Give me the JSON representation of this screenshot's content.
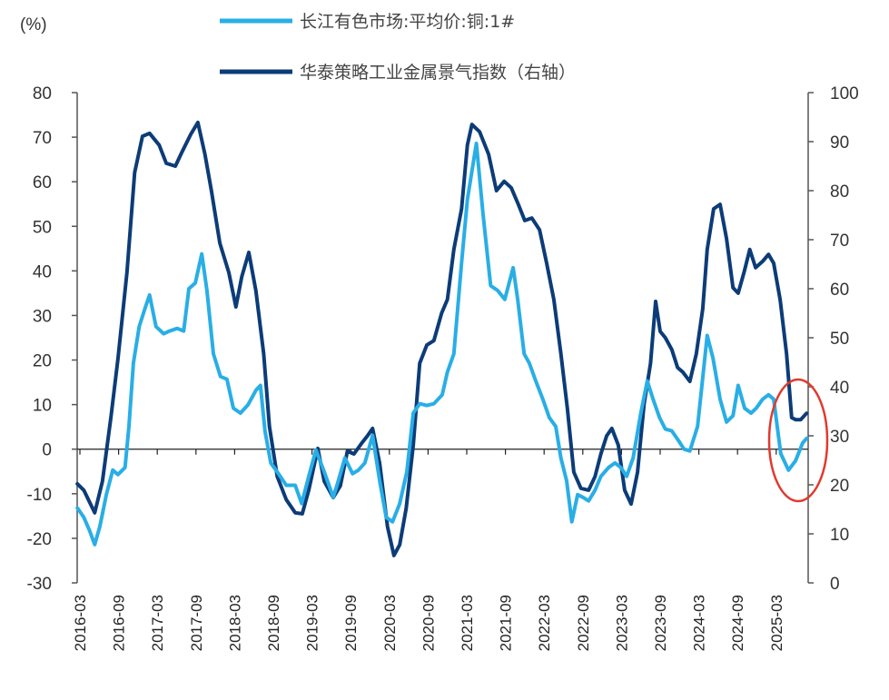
{
  "chart_data": {
    "type": "line",
    "title": "",
    "unit_label": "(%)",
    "xlabel": "",
    "ylabel_left": "(%)",
    "ylabel_right": "",
    "y_left_range": [
      -30,
      80
    ],
    "y_left_ticks": [
      80,
      70,
      60,
      50,
      40,
      30,
      20,
      10,
      0,
      -10,
      -20,
      -30
    ],
    "y_right_range": [
      0,
      100
    ],
    "y_right_ticks": [
      100,
      90,
      80,
      70,
      60,
      50,
      40,
      30,
      20,
      10,
      0
    ],
    "x_start": "2016-03",
    "x_tick_step_months": 6,
    "x_ticks": [
      "2016-03",
      "2016-09",
      "2017-03",
      "2017-09",
      "2018-03",
      "2018-09",
      "2019-03",
      "2019-09",
      "2020-03",
      "2020-09",
      "2021-03",
      "2021-09",
      "2022-03",
      "2022-09",
      "2023-03",
      "2023-09",
      "2024-03",
      "2024-09",
      "2025-03"
    ],
    "grid": false,
    "legend_position": "top",
    "legend": [
      {
        "label": "长江有色市场:平均价:铜:1#",
        "color": "#29aee6",
        "axis": "left"
      },
      {
        "label": "华泰策略工业金属景气指数（右轴）",
        "color": "#0c3c78",
        "axis": "right"
      }
    ],
    "annotation": {
      "type": "ellipse",
      "color": "#e03a2e",
      "note": "highlight on latest data points near 2025"
    },
    "series": [
      {
        "name": "长江有色市场:平均价:铜:1#",
        "axis": "left",
        "color": "#29aee6",
        "points_month_offset_value": [
          [
            -0.4,
            -13.2
          ],
          [
            0.6,
            -15.3
          ],
          [
            1.5,
            -18.3
          ],
          [
            2.3,
            -21.4
          ],
          [
            3.1,
            -17.3
          ],
          [
            4.1,
            -10.2
          ],
          [
            5.1,
            -4.7
          ],
          [
            5.9,
            -5.7
          ],
          [
            7.0,
            -4.1
          ],
          [
            7.6,
            5.1
          ],
          [
            8.3,
            19.3
          ],
          [
            9.2,
            27.5
          ],
          [
            10.1,
            31.6
          ],
          [
            10.8,
            34.6
          ],
          [
            11.8,
            27.5
          ],
          [
            13.0,
            25.9
          ],
          [
            13.9,
            26.5
          ],
          [
            15.1,
            27.1
          ],
          [
            16.1,
            26.5
          ],
          [
            16.9,
            36.0
          ],
          [
            17.9,
            37.3
          ],
          [
            18.9,
            43.8
          ],
          [
            19.7,
            35.6
          ],
          [
            20.7,
            21.4
          ],
          [
            21.8,
            16.3
          ],
          [
            22.8,
            15.7
          ],
          [
            23.8,
            9.2
          ],
          [
            24.9,
            8.1
          ],
          [
            26.1,
            10.0
          ],
          [
            27.3,
            13.2
          ],
          [
            28.0,
            14.3
          ],
          [
            28.7,
            4.1
          ],
          [
            29.6,
            -3.1
          ],
          [
            30.6,
            -5.1
          ],
          [
            32.0,
            -8.1
          ],
          [
            33.4,
            -8.1
          ],
          [
            34.4,
            -12.2
          ],
          [
            35.5,
            -6.1
          ],
          [
            36.6,
            -0.2
          ],
          [
            37.9,
            -5.1
          ],
          [
            39.3,
            -10.8
          ],
          [
            40.0,
            -7.5
          ],
          [
            41.1,
            -2.0
          ],
          [
            42.3,
            -5.5
          ],
          [
            43.2,
            -4.7
          ],
          [
            44.2,
            -3.1
          ],
          [
            45.4,
            3.1
          ],
          [
            46.5,
            -7.1
          ],
          [
            47.5,
            -15.3
          ],
          [
            48.5,
            -16.3
          ],
          [
            49.6,
            -12.2
          ],
          [
            50.7,
            -5.1
          ],
          [
            51.7,
            8.1
          ],
          [
            52.7,
            10.2
          ],
          [
            53.8,
            9.8
          ],
          [
            54.9,
            10.2
          ],
          [
            56.2,
            12.2
          ],
          [
            57.0,
            17.3
          ],
          [
            58.0,
            21.4
          ],
          [
            59.2,
            41.8
          ],
          [
            60.1,
            56.0
          ],
          [
            61.5,
            68.6
          ],
          [
            62.5,
            53.0
          ],
          [
            63.7,
            36.7
          ],
          [
            64.8,
            35.6
          ],
          [
            65.9,
            33.6
          ],
          [
            67.2,
            40.7
          ],
          [
            67.9,
            33.6
          ],
          [
            68.9,
            21.4
          ],
          [
            69.7,
            19.3
          ],
          [
            70.7,
            15.3
          ],
          [
            71.8,
            11.2
          ],
          [
            72.8,
            7.1
          ],
          [
            73.8,
            5.1
          ],
          [
            74.6,
            -2.0
          ],
          [
            75.5,
            -7.1
          ],
          [
            76.3,
            -16.3
          ],
          [
            77.2,
            -10.2
          ],
          [
            78.0,
            -10.8
          ],
          [
            78.9,
            -11.6
          ],
          [
            79.9,
            -9.2
          ],
          [
            80.8,
            -6.1
          ],
          [
            82.0,
            -4.1
          ],
          [
            83.0,
            -3.1
          ],
          [
            83.9,
            -4.1
          ],
          [
            84.8,
            -6.1
          ],
          [
            85.8,
            -2.0
          ],
          [
            87.0,
            8.1
          ],
          [
            88.0,
            15.3
          ],
          [
            88.9,
            11.2
          ],
          [
            89.9,
            7.1
          ],
          [
            90.8,
            4.5
          ],
          [
            91.8,
            4.1
          ],
          [
            92.8,
            2.0
          ],
          [
            93.7,
            0.0
          ],
          [
            94.6,
            -0.4
          ],
          [
            95.8,
            5.1
          ],
          [
            97.3,
            25.5
          ],
          [
            98.2,
            20.4
          ],
          [
            99.3,
            11.2
          ],
          [
            100.3,
            6.1
          ],
          [
            101.3,
            7.5
          ],
          [
            102.1,
            14.3
          ],
          [
            103.1,
            9.2
          ],
          [
            104.1,
            8.1
          ],
          [
            104.9,
            9.2
          ],
          [
            105.9,
            11.2
          ],
          [
            106.8,
            12.2
          ],
          [
            107.6,
            11.2
          ],
          [
            108.7,
            -1.0
          ],
          [
            109.9,
            -4.7
          ],
          [
            111.0,
            -2.6
          ],
          [
            112.1,
            1.4
          ],
          [
            112.7,
            2.4
          ]
        ]
      },
      {
        "name": "华泰策略工业金属景气指数（右轴）",
        "axis": "right",
        "color": "#0c3c78",
        "points_month_offset_value": [
          [
            -0.4,
            20.2
          ],
          [
            0.6,
            18.9
          ],
          [
            2.3,
            14.3
          ],
          [
            3.5,
            20.7
          ],
          [
            4.8,
            33.7
          ],
          [
            5.9,
            45.7
          ],
          [
            7.3,
            63.3
          ],
          [
            8.5,
            83.7
          ],
          [
            9.7,
            91.1
          ],
          [
            10.8,
            91.7
          ],
          [
            12.3,
            89.3
          ],
          [
            13.4,
            85.6
          ],
          [
            14.8,
            85.0
          ],
          [
            15.8,
            87.8
          ],
          [
            17.2,
            91.5
          ],
          [
            18.3,
            93.9
          ],
          [
            19.4,
            87.4
          ],
          [
            20.4,
            80.0
          ],
          [
            21.7,
            69.3
          ],
          [
            23.1,
            63.3
          ],
          [
            24.2,
            56.3
          ],
          [
            25.1,
            62.4
          ],
          [
            26.2,
            67.4
          ],
          [
            27.3,
            59.6
          ],
          [
            28.5,
            46.7
          ],
          [
            29.4,
            31.9
          ],
          [
            30.6,
            21.7
          ],
          [
            32.0,
            17.0
          ],
          [
            33.4,
            14.3
          ],
          [
            34.5,
            14.1
          ],
          [
            35.5,
            18.9
          ],
          [
            36.9,
            27.4
          ],
          [
            37.9,
            20.7
          ],
          [
            39.3,
            17.4
          ],
          [
            40.4,
            19.8
          ],
          [
            41.5,
            26.9
          ],
          [
            42.5,
            26.3
          ],
          [
            43.7,
            28.5
          ],
          [
            44.6,
            30.0
          ],
          [
            45.4,
            31.5
          ],
          [
            46.5,
            24.4
          ],
          [
            47.7,
            11.5
          ],
          [
            48.7,
            5.6
          ],
          [
            49.6,
            7.8
          ],
          [
            50.6,
            15.2
          ],
          [
            51.7,
            28.1
          ],
          [
            52.7,
            44.8
          ],
          [
            53.8,
            48.5
          ],
          [
            54.9,
            49.4
          ],
          [
            56.1,
            55.0
          ],
          [
            57.0,
            57.8
          ],
          [
            58.0,
            68.0
          ],
          [
            59.2,
            76.3
          ],
          [
            60.1,
            89.3
          ],
          [
            60.8,
            93.5
          ],
          [
            62.0,
            92.0
          ],
          [
            63.4,
            87.4
          ],
          [
            64.6,
            80.0
          ],
          [
            65.8,
            81.9
          ],
          [
            66.9,
            80.6
          ],
          [
            68.0,
            77.2
          ],
          [
            69.0,
            73.9
          ],
          [
            70.1,
            74.4
          ],
          [
            71.3,
            72.0
          ],
          [
            72.4,
            65.2
          ],
          [
            73.5,
            57.8
          ],
          [
            74.6,
            46.7
          ],
          [
            75.6,
            35.6
          ],
          [
            76.6,
            22.6
          ],
          [
            77.7,
            19.3
          ],
          [
            78.9,
            18.9
          ],
          [
            79.9,
            21.7
          ],
          [
            80.8,
            26.3
          ],
          [
            81.7,
            30.0
          ],
          [
            82.5,
            31.5
          ],
          [
            83.5,
            28.1
          ],
          [
            84.5,
            18.9
          ],
          [
            85.5,
            16.1
          ],
          [
            86.5,
            22.6
          ],
          [
            87.5,
            36.5
          ],
          [
            88.5,
            44.8
          ],
          [
            89.3,
            57.4
          ],
          [
            90.0,
            51.3
          ],
          [
            90.8,
            50.0
          ],
          [
            91.8,
            47.6
          ],
          [
            92.7,
            43.9
          ],
          [
            93.5,
            43.0
          ],
          [
            94.6,
            41.1
          ],
          [
            95.6,
            46.7
          ],
          [
            96.6,
            55.9
          ],
          [
            97.3,
            68.0
          ],
          [
            98.3,
            76.3
          ],
          [
            99.3,
            77.2
          ],
          [
            100.3,
            70.2
          ],
          [
            101.3,
            60.2
          ],
          [
            102.1,
            59.1
          ],
          [
            103.0,
            63.3
          ],
          [
            103.9,
            68.0
          ],
          [
            104.8,
            64.3
          ],
          [
            105.9,
            65.6
          ],
          [
            106.8,
            67.0
          ],
          [
            107.6,
            65.2
          ],
          [
            108.6,
            57.8
          ],
          [
            109.6,
            46.7
          ],
          [
            110.4,
            33.7
          ],
          [
            111.0,
            33.3
          ],
          [
            111.8,
            33.3
          ],
          [
            112.7,
            34.6
          ]
        ]
      }
    ]
  }
}
